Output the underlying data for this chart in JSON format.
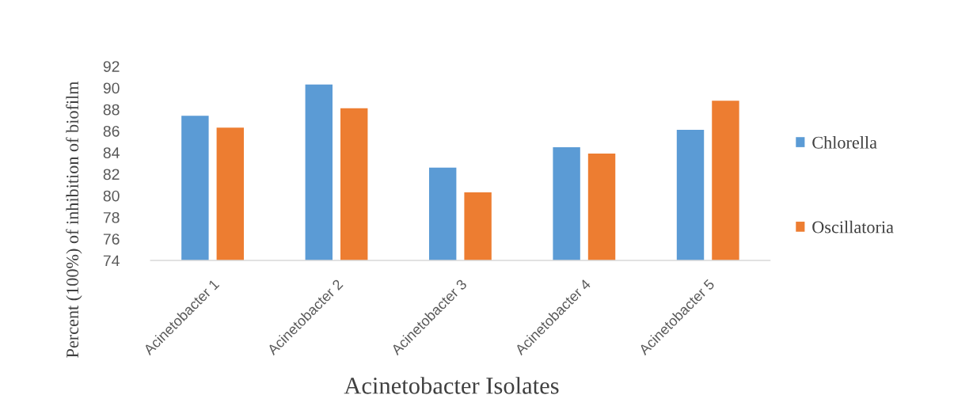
{
  "chart_data": {
    "type": "bar",
    "xlabel": "Acinetobacter Isolates",
    "ylabel": "Percent (100%) of inhibition of biofilm",
    "categories": [
      "Acinetobacter 1",
      "Acinetobacter 2",
      "Acinetobacter 3",
      "Acinetobacter 4",
      "Acinetobacter 5"
    ],
    "series": [
      {
        "name": "Chlorella",
        "color": "#5b9bd5",
        "values": [
          87.4,
          90.3,
          82.6,
          84.5,
          86.1
        ]
      },
      {
        "name": "Oscillatoria",
        "color": "#ed7d31",
        "values": [
          86.3,
          88.1,
          80.3,
          83.9,
          88.8
        ]
      }
    ],
    "ylim": [
      74,
      92
    ],
    "yticks": [
      74,
      76,
      78,
      80,
      82,
      84,
      86,
      88,
      90,
      92
    ],
    "grid": false,
    "legend": "right"
  }
}
